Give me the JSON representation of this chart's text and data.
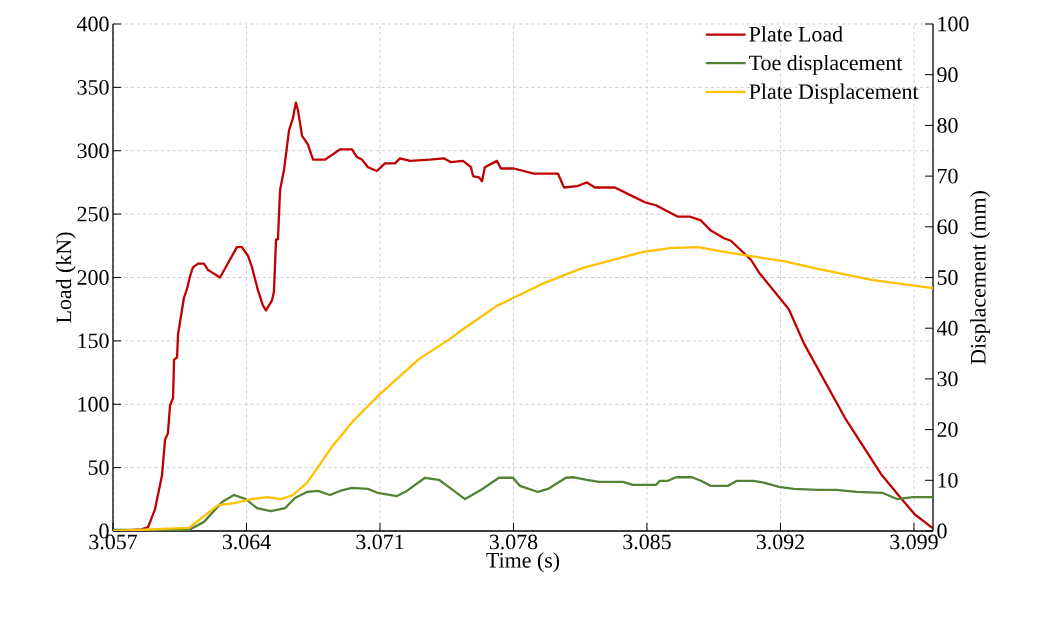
{
  "chart_data": {
    "type": "line",
    "xlabel": "Time (s)",
    "ylabel": "Load (kN)",
    "y2label": "Displacement (mm)",
    "xlim": [
      3.057,
      3.1
    ],
    "xticks": [
      3.057,
      3.064,
      3.071,
      3.078,
      3.085,
      3.092,
      3.099
    ],
    "ylim": [
      0,
      400
    ],
    "yticks": [
      0,
      50,
      100,
      150,
      200,
      250,
      300,
      350,
      400
    ],
    "y2lim": [
      0,
      100
    ],
    "y2ticks": [
      0,
      10,
      20,
      30,
      40,
      50,
      60,
      70,
      80,
      90,
      100
    ],
    "grid": true,
    "legend": "top right",
    "series": [
      {
        "name": "Plate Load",
        "color": "#c00000",
        "axis": "y",
        "x": [
          3.057,
          3.05842,
          3.05884,
          3.0592,
          3.05957,
          3.05973,
          3.05988,
          3.05999,
          3.06015,
          3.0602,
          3.06036,
          3.06041,
          3.06057,
          3.06072,
          3.06088,
          3.06104,
          3.06119,
          3.06146,
          3.06177,
          3.06198,
          3.06261,
          3.06313,
          3.0635,
          3.06376,
          3.06408,
          3.06429,
          3.0646,
          3.06486,
          3.06502,
          3.06534,
          3.06544,
          3.06555,
          3.06565,
          3.06576,
          3.06597,
          3.06623,
          3.06644,
          3.06659,
          3.0667,
          3.06691,
          3.06722,
          3.06749,
          3.06775,
          3.06812,
          3.0689,
          3.06953,
          3.06979,
          3.07006,
          3.07037,
          3.07084,
          3.07126,
          3.07179,
          3.07205,
          3.07257,
          3.07362,
          3.07435,
          3.07472,
          3.07535,
          3.07577,
          3.07588,
          3.07619,
          3.07635,
          3.0765,
          3.07713,
          3.07734,
          3.07802,
          3.07907,
          3.08033,
          3.08065,
          3.08133,
          3.08185,
          3.08227,
          3.08332,
          3.08426,
          3.08495,
          3.08547,
          3.08662,
          3.08725,
          3.08783,
          3.08835,
          3.08904,
          3.0894,
          3.09045,
          3.09087,
          3.09244,
          3.09323,
          3.09543,
          3.09727,
          3.09831,
          3.09905,
          3.1
        ],
        "values": [
          0,
          1,
          3,
          17,
          44,
          72,
          77,
          99,
          105,
          135,
          137,
          155,
          170,
          184,
          191,
          201,
          208,
          211,
          211,
          206,
          200,
          214,
          224,
          224,
          217,
          208,
          190,
          178,
          174,
          182,
          189,
          230,
          230,
          269,
          285,
          316,
          326,
          338,
          332,
          312,
          305,
          293,
          293,
          293,
          301,
          301,
          295,
          293,
          287,
          284,
          290,
          290,
          294,
          292,
          293,
          294,
          291,
          292,
          287,
          280,
          279,
          276,
          287,
          292,
          286,
          286,
          282,
          282,
          271,
          272,
          275,
          271,
          271,
          264,
          259,
          257,
          248,
          248,
          245,
          237,
          231,
          229,
          214,
          204,
          175,
          148,
          88,
          45,
          26,
          13,
          2
        ]
      },
      {
        "name": "Toe displacement",
        "color": "#548235",
        "axis": "y2",
        "x": [
          3.057,
          3.06098,
          3.06177,
          3.06272,
          3.06334,
          3.06397,
          3.06455,
          3.06528,
          3.06602,
          3.06654,
          3.06717,
          3.06775,
          3.06838,
          3.0689,
          3.06953,
          3.07037,
          3.07089,
          3.07189,
          3.07241,
          3.07336,
          3.07409,
          3.07467,
          3.07546,
          3.07629,
          3.07724,
          3.07797,
          3.07834,
          3.07928,
          3.07981,
          3.08075,
          3.08117,
          3.08185,
          3.08248,
          3.08374,
          3.08426,
          3.08547,
          3.08568,
          3.0861,
          3.08652,
          3.08736,
          3.08783,
          3.08835,
          3.08924,
          3.08972,
          3.09056,
          3.09118,
          3.09192,
          3.09271,
          3.09396,
          3.09491,
          3.09601,
          3.09737,
          3.09811,
          3.09894,
          3.1
        ],
        "values": [
          0.2,
          0.2,
          1.8,
          5.7,
          7.1,
          6.3,
          4.5,
          3.9,
          4.5,
          6.5,
          7.7,
          7.9,
          7.1,
          7.9,
          8.5,
          8.3,
          7.5,
          6.9,
          7.9,
          10.5,
          10.1,
          8.5,
          6.3,
          8.1,
          10.5,
          10.5,
          8.9,
          7.7,
          8.3,
          10.5,
          10.6,
          10.1,
          9.7,
          9.7,
          9.1,
          9.1,
          9.9,
          9.9,
          10.6,
          10.6,
          9.9,
          8.9,
          8.9,
          9.9,
          9.9,
          9.5,
          8.7,
          8.3,
          8.1,
          8.1,
          7.7,
          7.5,
          6.3,
          6.7,
          6.7
        ]
      },
      {
        "name": "Plate Displacement",
        "color": "#ffc000",
        "axis": "y2",
        "x": [
          3.057,
          3.06098,
          3.06251,
          3.06334,
          3.06429,
          3.06507,
          3.06581,
          3.06644,
          3.06717,
          3.06775,
          3.06848,
          3.06964,
          3.071,
          3.07304,
          3.07467,
          3.07535,
          3.07713,
          3.0796,
          3.08164,
          3.08474,
          3.0862,
          3.08767,
          3.08883,
          3.09045,
          3.09223,
          3.09396,
          3.09685,
          3.1
        ],
        "values": [
          0,
          0.6,
          5.1,
          5.5,
          6.3,
          6.7,
          6.3,
          7.1,
          9.5,
          12.6,
          16.6,
          21.9,
          27.0,
          33.9,
          37.9,
          39.8,
          44.4,
          48.9,
          51.9,
          55.0,
          55.8,
          56.0,
          55.2,
          54.2,
          53.2,
          51.7,
          49.5,
          47.9
        ]
      }
    ]
  }
}
